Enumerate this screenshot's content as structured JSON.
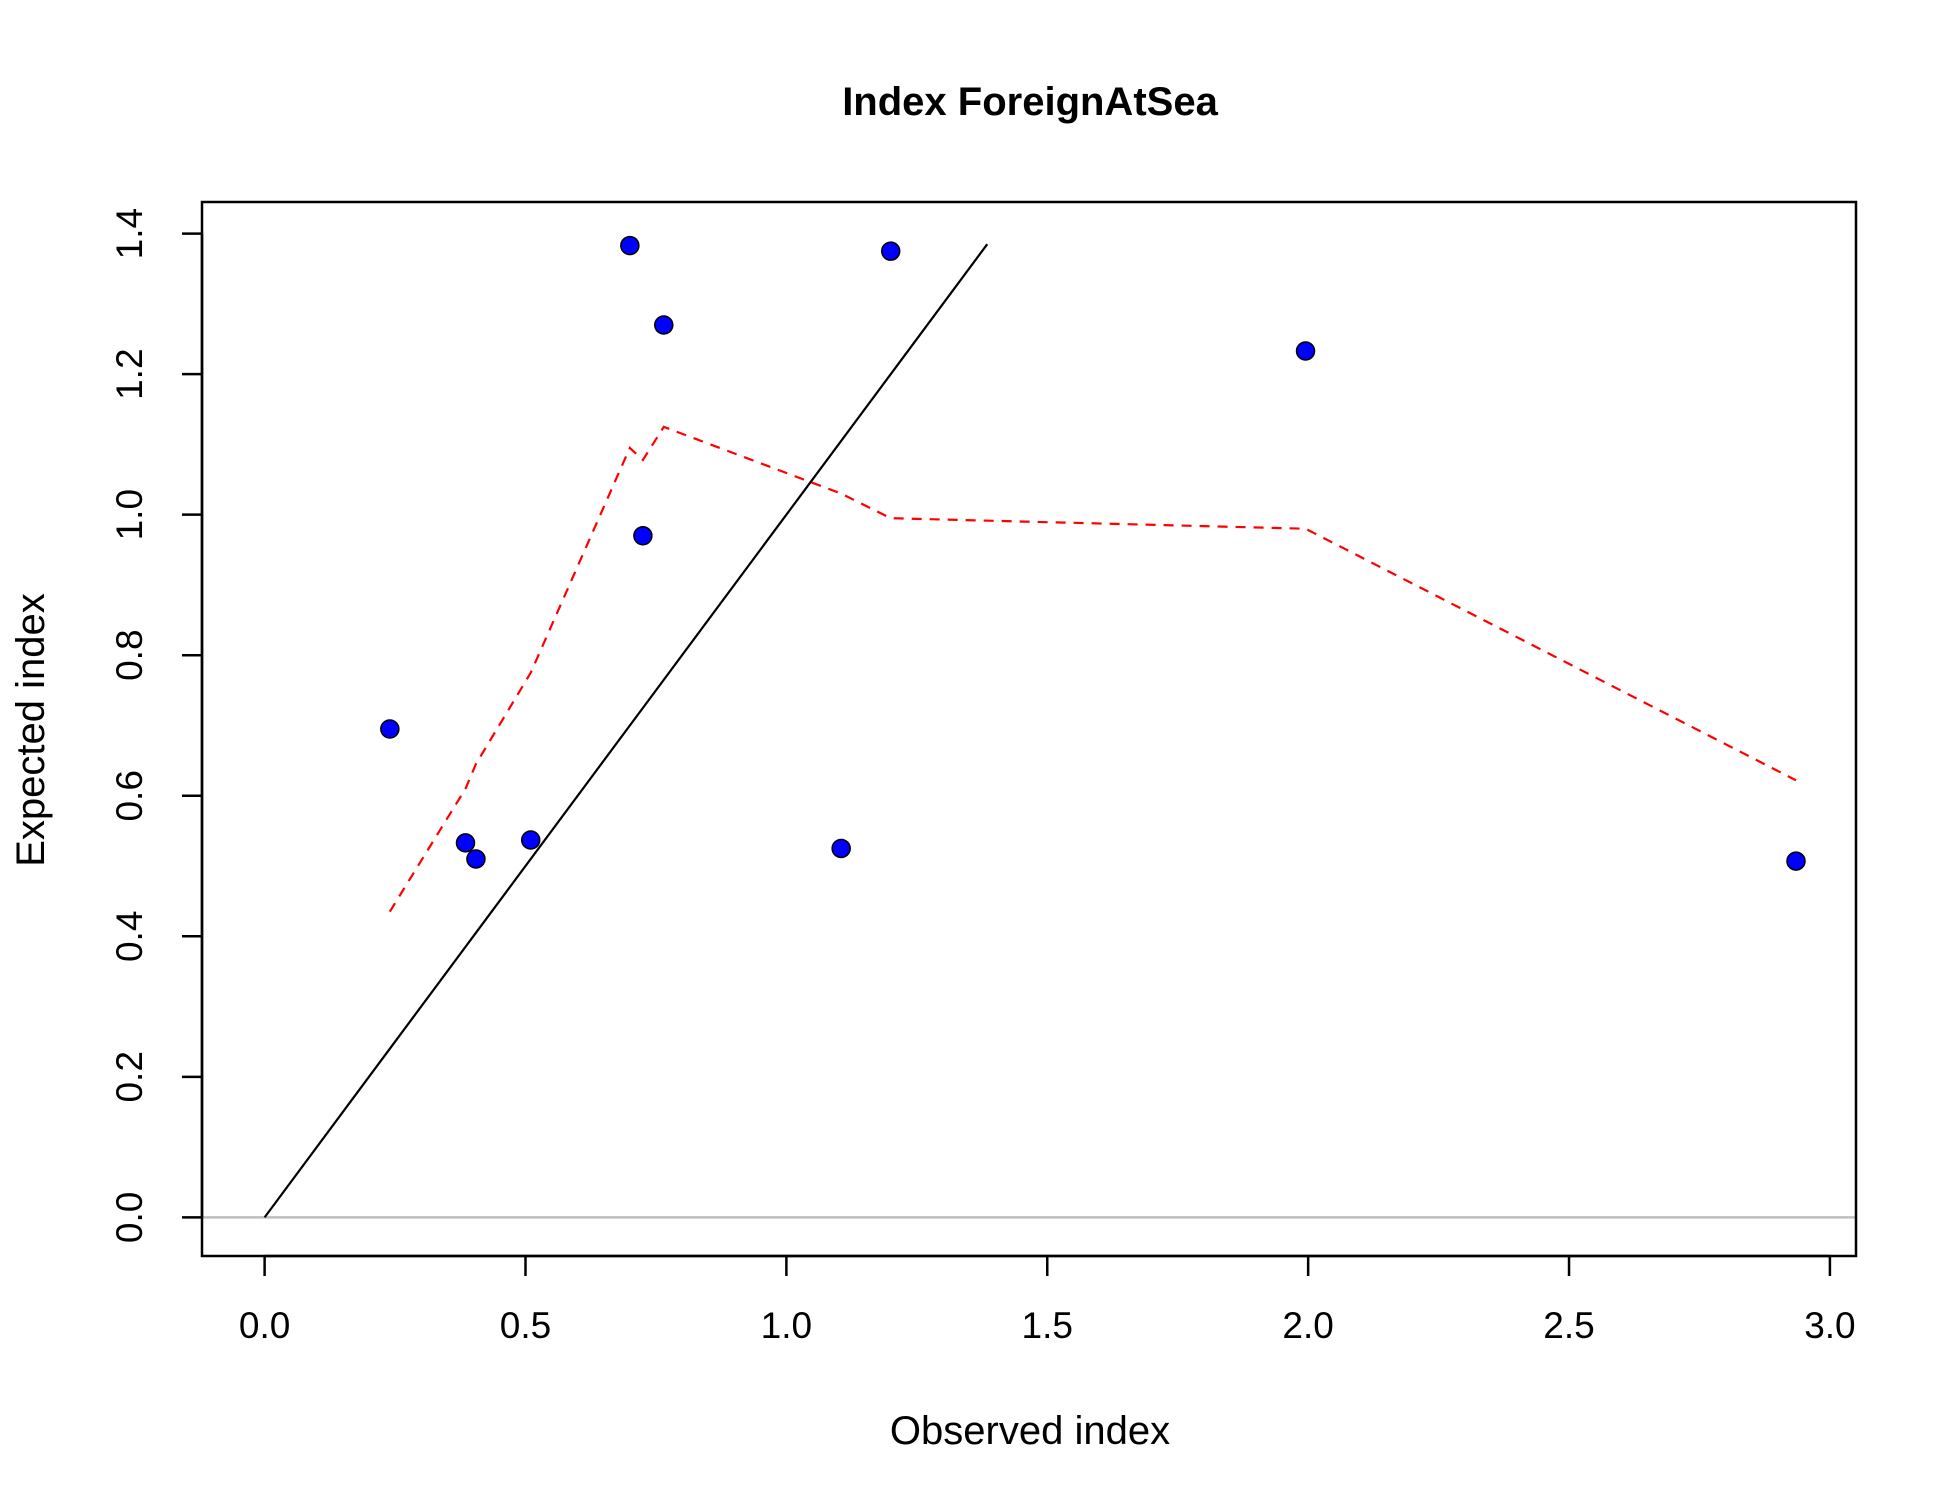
{
  "chart_data": {
    "type": "scatter",
    "title": "Index ForeignAtSea",
    "xlabel": "Observed index",
    "ylabel": "Expected index",
    "xlim": [
      -0.12,
      3.05
    ],
    "ylim": [
      -0.055,
      1.445
    ],
    "x_ticks": [
      "0.0",
      "0.5",
      "1.0",
      "1.5",
      "2.0",
      "2.5",
      "3.0"
    ],
    "y_ticks": [
      "0.0",
      "0.2",
      "0.4",
      "0.6",
      "0.8",
      "1.0",
      "1.2",
      "1.4"
    ],
    "grid": false,
    "points": {
      "name": "",
      "color": "#0000ff",
      "x": [
        0.24,
        0.385,
        0.405,
        0.51,
        0.7,
        0.725,
        0.765,
        1.105,
        1.2,
        1.995,
        2.935
      ],
      "y": [
        0.695,
        0.533,
        0.51,
        0.537,
        1.383,
        0.97,
        1.27,
        0.525,
        1.375,
        1.233,
        0.507
      ]
    },
    "identity_line": {
      "color": "#000000",
      "x": [
        0.0,
        1.385
      ],
      "y": [
        0.0,
        1.385
      ]
    },
    "smoother": {
      "color": "#ff0000",
      "style": "dashed",
      "x": [
        0.24,
        0.385,
        0.405,
        0.51,
        0.7,
        0.725,
        0.765,
        1.105,
        1.2,
        1.995,
        2.935
      ],
      "y": [
        0.435,
        0.61,
        0.645,
        0.775,
        1.095,
        1.078,
        1.125,
        1.03,
        0.995,
        0.98,
        0.622
      ]
    },
    "reference_line": {
      "color": "#bebebe",
      "y": 0.0
    }
  }
}
